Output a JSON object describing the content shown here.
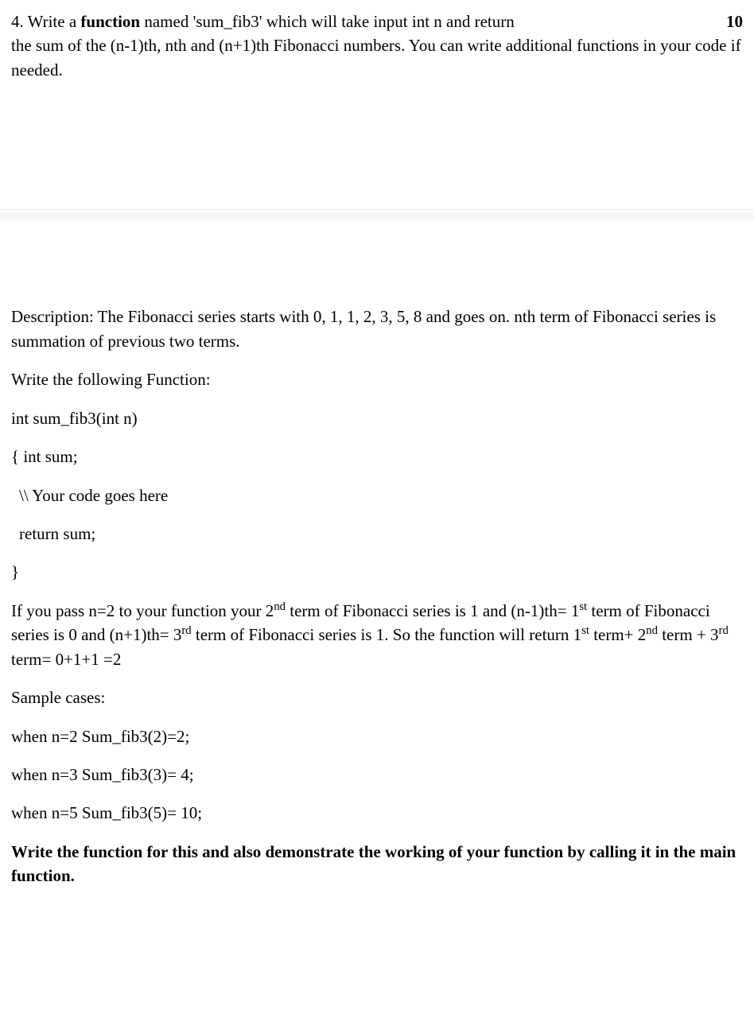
{
  "question": {
    "number": "4.",
    "prompt_part1": "Write a ",
    "prompt_bold": "function",
    "prompt_part2": " named 'sum_fib3' which will take input int n and return",
    "points": "10",
    "prompt_line2": "the sum of the  (n-1)th, nth and (n+1)th  Fibonacci numbers. You can write additional functions in your code if needed."
  },
  "description": {
    "label": "Description:",
    "text": "  The Fibonacci series starts with 0, 1, 1, 2, 3, 5, 8 and goes on. nth term of Fibonacci series is summation of previous two terms."
  },
  "write_function": "Write the following Function:",
  "code": {
    "signature": "int sum_fib3(int n)",
    "open": "{ int sum;",
    "comment": "\\\\ Your code goes here",
    "return": "return sum;",
    "close": "}"
  },
  "explanation": {
    "part1": " If you pass n=2 to your function your 2",
    "sup1": "nd",
    "part2": " term of Fibonacci series is 1 and (n-1)th= 1",
    "sup2": "st",
    "part3": " term of Fibonacci series is 0 and (n+1)th= 3",
    "sup3": "rd",
    "part4": " term of Fibonacci series is 1. So the function will return 1",
    "sup4": "st",
    "part5": " term+ 2",
    "sup5": "nd",
    "part6": " term + 3",
    "sup6": "rd",
    "part7": " term= 0+1+1 =2"
  },
  "sample": {
    "heading": "Sample cases:",
    "case1": "when n=2  Sum_fib3(2)=2;",
    "case2": "when n=3   Sum_fib3(3)= 4;",
    "case3": "when n=5   Sum_fib3(5)= 10;"
  },
  "final_instruction": "Write the function for this and also demonstrate the working of your function by calling it in the main function."
}
